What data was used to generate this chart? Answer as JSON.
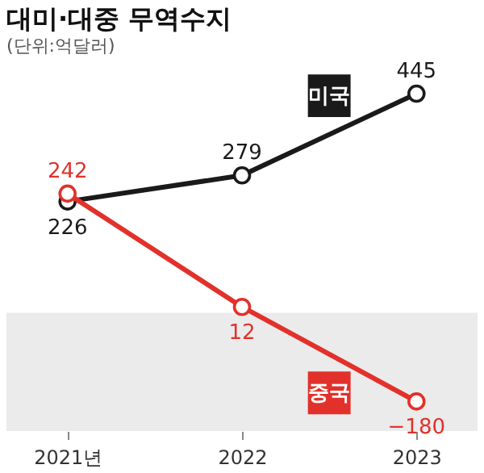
{
  "chart_data": {
    "type": "line",
    "title": "대미·대중 무역수지",
    "subtitle": "(단위:억달러)",
    "categories": [
      "2021년",
      "2022",
      "2023"
    ],
    "series": [
      {
        "name": "미국",
        "color": "#1a1a1a",
        "values": [
          226,
          279,
          445
        ]
      },
      {
        "name": "중국",
        "color": "#e2312b",
        "values": [
          242,
          12,
          -180
        ]
      }
    ],
    "data_labels": true,
    "marker": "circle",
    "line_style": "solid",
    "bands": [
      {
        "axis": "y",
        "from": -240,
        "to": 0,
        "color": "#ebebeb"
      }
    ]
  }
}
